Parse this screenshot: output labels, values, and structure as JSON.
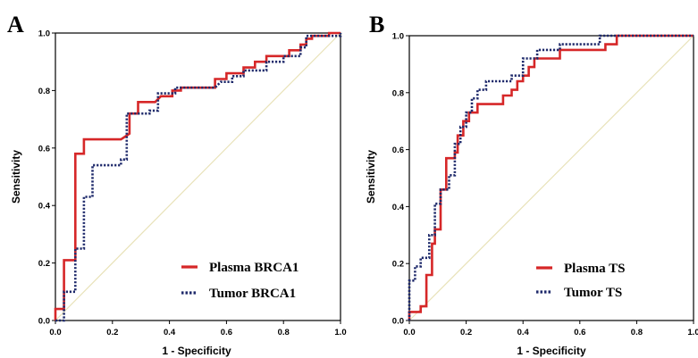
{
  "chart_data": [
    {
      "type": "line",
      "panel_label": "A",
      "title": "",
      "xlabel": "1 - Specificity",
      "ylabel": "Sensitivity",
      "xlim": [
        0,
        1
      ],
      "ylim": [
        0,
        1
      ],
      "x_ticks": [
        "0.0",
        "0.2",
        "0.4",
        "0.6",
        "0.8",
        "1.0"
      ],
      "y_ticks": [
        "0.0",
        "0.2",
        "0.4",
        "0.6",
        "0.8",
        "1.0"
      ],
      "legend_position": "bottom-right",
      "reference_line": true,
      "series": [
        {
          "name": "Plasma BRCA1",
          "color": "#d62728",
          "line_style": "solid",
          "points": [
            [
              0,
              0
            ],
            [
              0,
              0.04
            ],
            [
              0.03,
              0.04
            ],
            [
              0.03,
              0.21
            ],
            [
              0.07,
              0.21
            ],
            [
              0.07,
              0.58
            ],
            [
              0.1,
              0.58
            ],
            [
              0.1,
              0.63
            ],
            [
              0.23,
              0.63
            ],
            [
              0.26,
              0.65
            ],
            [
              0.26,
              0.72
            ],
            [
              0.29,
              0.72
            ],
            [
              0.29,
              0.76
            ],
            [
              0.35,
              0.76
            ],
            [
              0.37,
              0.78
            ],
            [
              0.41,
              0.78
            ],
            [
              0.41,
              0.8
            ],
            [
              0.44,
              0.8
            ],
            [
              0.44,
              0.81
            ],
            [
              0.56,
              0.81
            ],
            [
              0.56,
              0.84
            ],
            [
              0.6,
              0.84
            ],
            [
              0.6,
              0.86
            ],
            [
              0.66,
              0.86
            ],
            [
              0.66,
              0.88
            ],
            [
              0.7,
              0.88
            ],
            [
              0.7,
              0.9
            ],
            [
              0.74,
              0.9
            ],
            [
              0.74,
              0.92
            ],
            [
              0.82,
              0.92
            ],
            [
              0.82,
              0.94
            ],
            [
              0.86,
              0.94
            ],
            [
              0.86,
              0.96
            ],
            [
              0.88,
              0.96
            ],
            [
              0.88,
              0.98
            ],
            [
              0.9,
              0.98
            ],
            [
              0.9,
              0.99
            ],
            [
              0.96,
              0.99
            ],
            [
              0.96,
              1
            ],
            [
              1,
              1
            ]
          ]
        },
        {
          "name": "Tumor BRCA1",
          "color": "#1f2a6b",
          "line_style": "dotted",
          "points": [
            [
              0,
              0
            ],
            [
              0.03,
              0
            ],
            [
              0.03,
              0.1
            ],
            [
              0.07,
              0.1
            ],
            [
              0.07,
              0.25
            ],
            [
              0.1,
              0.25
            ],
            [
              0.1,
              0.43
            ],
            [
              0.13,
              0.43
            ],
            [
              0.13,
              0.54
            ],
            [
              0.23,
              0.54
            ],
            [
              0.23,
              0.56
            ],
            [
              0.25,
              0.56
            ],
            [
              0.25,
              0.72
            ],
            [
              0.33,
              0.72
            ],
            [
              0.33,
              0.73
            ],
            [
              0.36,
              0.73
            ],
            [
              0.36,
              0.79
            ],
            [
              0.42,
              0.79
            ],
            [
              0.42,
              0.81
            ],
            [
              0.56,
              0.81
            ],
            [
              0.58,
              0.83
            ],
            [
              0.62,
              0.83
            ],
            [
              0.62,
              0.85
            ],
            [
              0.66,
              0.85
            ],
            [
              0.66,
              0.87
            ],
            [
              0.74,
              0.87
            ],
            [
              0.74,
              0.9
            ],
            [
              0.8,
              0.9
            ],
            [
              0.8,
              0.92
            ],
            [
              0.86,
              0.92
            ],
            [
              0.86,
              0.95
            ],
            [
              0.88,
              0.95
            ],
            [
              0.88,
              0.99
            ],
            [
              1,
              0.99
            ],
            [
              1,
              1
            ]
          ]
        }
      ]
    },
    {
      "type": "line",
      "panel_label": "B",
      "title": "",
      "xlabel": "1 - Specificity",
      "ylabel": "Sensitivity",
      "xlim": [
        0,
        1
      ],
      "ylim": [
        0,
        1
      ],
      "x_ticks": [
        "0.0",
        "0.2",
        "0.4",
        "0.6",
        "0.8",
        "1.0"
      ],
      "y_ticks": [
        "0.0",
        "0.2",
        "0.4",
        "0.6",
        "0.8",
        "1.0"
      ],
      "legend_position": "bottom-right",
      "reference_line": true,
      "series": [
        {
          "name": "Plasma TS",
          "color": "#d62728",
          "line_style": "solid",
          "points": [
            [
              0,
              0
            ],
            [
              0,
              0.03
            ],
            [
              0.04,
              0.03
            ],
            [
              0.04,
              0.05
            ],
            [
              0.06,
              0.05
            ],
            [
              0.06,
              0.16
            ],
            [
              0.08,
              0.16
            ],
            [
              0.08,
              0.27
            ],
            [
              0.09,
              0.27
            ],
            [
              0.09,
              0.32
            ],
            [
              0.11,
              0.32
            ],
            [
              0.11,
              0.46
            ],
            [
              0.13,
              0.46
            ],
            [
              0.13,
              0.57
            ],
            [
              0.16,
              0.57
            ],
            [
              0.16,
              0.59
            ],
            [
              0.17,
              0.59
            ],
            [
              0.17,
              0.65
            ],
            [
              0.19,
              0.65
            ],
            [
              0.19,
              0.7
            ],
            [
              0.21,
              0.7
            ],
            [
              0.21,
              0.73
            ],
            [
              0.24,
              0.73
            ],
            [
              0.24,
              0.76
            ],
            [
              0.33,
              0.76
            ],
            [
              0.33,
              0.79
            ],
            [
              0.36,
              0.79
            ],
            [
              0.36,
              0.81
            ],
            [
              0.38,
              0.81
            ],
            [
              0.38,
              0.84
            ],
            [
              0.4,
              0.84
            ],
            [
              0.4,
              0.86
            ],
            [
              0.42,
              0.86
            ],
            [
              0.42,
              0.89
            ],
            [
              0.44,
              0.89
            ],
            [
              0.44,
              0.92
            ],
            [
              0.53,
              0.92
            ],
            [
              0.53,
              0.95
            ],
            [
              0.69,
              0.95
            ],
            [
              0.69,
              0.97
            ],
            [
              0.73,
              0.97
            ],
            [
              0.73,
              1
            ],
            [
              1,
              1
            ]
          ]
        },
        {
          "name": "Tumor TS",
          "color": "#1f2a6b",
          "line_style": "dotted",
          "points": [
            [
              0,
              0
            ],
            [
              0,
              0.14
            ],
            [
              0.02,
              0.14
            ],
            [
              0.02,
              0.19
            ],
            [
              0.04,
              0.19
            ],
            [
              0.04,
              0.22
            ],
            [
              0.07,
              0.22
            ],
            [
              0.07,
              0.3
            ],
            [
              0.09,
              0.3
            ],
            [
              0.09,
              0.41
            ],
            [
              0.11,
              0.41
            ],
            [
              0.11,
              0.46
            ],
            [
              0.14,
              0.46
            ],
            [
              0.14,
              0.51
            ],
            [
              0.16,
              0.51
            ],
            [
              0.16,
              0.62
            ],
            [
              0.18,
              0.62
            ],
            [
              0.18,
              0.68
            ],
            [
              0.2,
              0.68
            ],
            [
              0.2,
              0.73
            ],
            [
              0.22,
              0.73
            ],
            [
              0.22,
              0.78
            ],
            [
              0.24,
              0.78
            ],
            [
              0.24,
              0.81
            ],
            [
              0.27,
              0.81
            ],
            [
              0.27,
              0.84
            ],
            [
              0.36,
              0.84
            ],
            [
              0.36,
              0.86
            ],
            [
              0.4,
              0.86
            ],
            [
              0.4,
              0.92
            ],
            [
              0.45,
              0.92
            ],
            [
              0.45,
              0.95
            ],
            [
              0.53,
              0.95
            ],
            [
              0.53,
              0.97
            ],
            [
              0.67,
              0.97
            ],
            [
              0.67,
              1
            ],
            [
              1,
              1
            ]
          ]
        }
      ]
    }
  ]
}
